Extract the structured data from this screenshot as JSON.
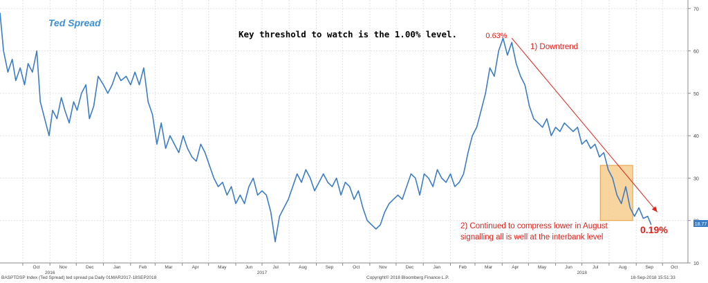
{
  "chart_data": {
    "type": "line",
    "title": "Ted Spread",
    "subtitle": "Key threshold to watch is the 1.00% level.",
    "xlabel": "",
    "ylabel": "",
    "x_range": [
      "2016-09-05",
      "2018-10-30"
    ],
    "ylim": [
      10,
      72
    ],
    "yticks": [
      10,
      20,
      30,
      40,
      50,
      60,
      70
    ],
    "ytick_labels": [
      "10",
      "20",
      "30",
      "40",
      "50",
      "60",
      "70"
    ],
    "grid": true,
    "y_axis_side": "right",
    "month_labels": [
      {
        "label": "Oct",
        "date": "2016-10-01"
      },
      {
        "label": "Nov",
        "date": "2016-11-01"
      },
      {
        "label": "Dec",
        "date": "2016-12-01"
      },
      {
        "label": "Jan",
        "date": "2017-01-01"
      },
      {
        "label": "Feb",
        "date": "2017-02-01"
      },
      {
        "label": "Mar",
        "date": "2017-03-01"
      },
      {
        "label": "Apr",
        "date": "2017-04-01"
      },
      {
        "label": "May",
        "date": "2017-05-01"
      },
      {
        "label": "Jun",
        "date": "2017-06-01"
      },
      {
        "label": "Jul",
        "date": "2017-07-01"
      },
      {
        "label": "Aug",
        "date": "2017-08-01"
      },
      {
        "label": "Sep",
        "date": "2017-09-01"
      },
      {
        "label": "Oct",
        "date": "2017-10-01"
      },
      {
        "label": "Nov",
        "date": "2017-11-01"
      },
      {
        "label": "Dec",
        "date": "2017-12-01"
      },
      {
        "label": "Jan",
        "date": "2018-01-01"
      },
      {
        "label": "Feb",
        "date": "2018-02-01"
      },
      {
        "label": "Mar",
        "date": "2018-03-01"
      },
      {
        "label": "Apr",
        "date": "2018-04-01"
      },
      {
        "label": "May",
        "date": "2018-05-01"
      },
      {
        "label": "Jun",
        "date": "2018-06-01"
      },
      {
        "label": "Jul",
        "date": "2018-07-01"
      },
      {
        "label": "Aug",
        "date": "2018-08-01"
      },
      {
        "label": "Sep",
        "date": "2018-09-01"
      },
      {
        "label": "Oct",
        "date": "2018-10-01"
      }
    ],
    "year_labels": [
      {
        "label": "2016",
        "date": "2016-11-01"
      },
      {
        "label": "2017",
        "date": "2017-07-01"
      },
      {
        "label": "2018",
        "date": "2018-07-01"
      }
    ],
    "series": [
      {
        "name": "",
        "color": "#3a7cc6",
        "points": [
          [
            "2016-09-05",
            69
          ],
          [
            "2016-09-09",
            60
          ],
          [
            "2016-09-14",
            55
          ],
          [
            "2016-09-19",
            58
          ],
          [
            "2016-09-23",
            53
          ],
          [
            "2016-09-28",
            56
          ],
          [
            "2016-10-03",
            52
          ],
          [
            "2016-10-07",
            57
          ],
          [
            "2016-10-12",
            55
          ],
          [
            "2016-10-17",
            60
          ],
          [
            "2016-10-21",
            48
          ],
          [
            "2016-10-26",
            44
          ],
          [
            "2016-10-31",
            40
          ],
          [
            "2016-11-04",
            46
          ],
          [
            "2016-11-09",
            44
          ],
          [
            "2016-11-14",
            49
          ],
          [
            "2016-11-18",
            46
          ],
          [
            "2016-11-23",
            43
          ],
          [
            "2016-11-28",
            48
          ],
          [
            "2016-12-02",
            46
          ],
          [
            "2016-12-07",
            50
          ],
          [
            "2016-12-12",
            52
          ],
          [
            "2016-12-16",
            44
          ],
          [
            "2016-12-21",
            47
          ],
          [
            "2016-12-26",
            54
          ],
          [
            "2017-01-01",
            52
          ],
          [
            "2017-01-06",
            50
          ],
          [
            "2017-01-11",
            52
          ],
          [
            "2017-01-16",
            55
          ],
          [
            "2017-01-21",
            53
          ],
          [
            "2017-01-27",
            54
          ],
          [
            "2017-02-01",
            52
          ],
          [
            "2017-02-06",
            55
          ],
          [
            "2017-02-11",
            52
          ],
          [
            "2017-02-16",
            56
          ],
          [
            "2017-02-21",
            48
          ],
          [
            "2017-02-26",
            45
          ],
          [
            "2017-03-03",
            38
          ],
          [
            "2017-03-08",
            43
          ],
          [
            "2017-03-13",
            37
          ],
          [
            "2017-03-18",
            40
          ],
          [
            "2017-03-23",
            38
          ],
          [
            "2017-03-28",
            36
          ],
          [
            "2017-04-02",
            40
          ],
          [
            "2017-04-07",
            37
          ],
          [
            "2017-04-12",
            35
          ],
          [
            "2017-04-17",
            34
          ],
          [
            "2017-04-22",
            38
          ],
          [
            "2017-04-27",
            36
          ],
          [
            "2017-05-02",
            33
          ],
          [
            "2017-05-07",
            30
          ],
          [
            "2017-05-12",
            28
          ],
          [
            "2017-05-17",
            29
          ],
          [
            "2017-05-22",
            26
          ],
          [
            "2017-05-27",
            28
          ],
          [
            "2017-06-01",
            24
          ],
          [
            "2017-06-06",
            26
          ],
          [
            "2017-06-11",
            24
          ],
          [
            "2017-06-16",
            28
          ],
          [
            "2017-06-21",
            30
          ],
          [
            "2017-06-26",
            26
          ],
          [
            "2017-07-01",
            27
          ],
          [
            "2017-07-06",
            26
          ],
          [
            "2017-07-11",
            22
          ],
          [
            "2017-07-16",
            15
          ],
          [
            "2017-07-21",
            21
          ],
          [
            "2017-07-26",
            23
          ],
          [
            "2017-07-31",
            25
          ],
          [
            "2017-08-05",
            28
          ],
          [
            "2017-08-10",
            31
          ],
          [
            "2017-08-15",
            29
          ],
          [
            "2017-08-20",
            32
          ],
          [
            "2017-08-25",
            30
          ],
          [
            "2017-08-30",
            27
          ],
          [
            "2017-09-04",
            29
          ],
          [
            "2017-09-09",
            31
          ],
          [
            "2017-09-14",
            29
          ],
          [
            "2017-09-19",
            28
          ],
          [
            "2017-09-24",
            30
          ],
          [
            "2017-09-29",
            26
          ],
          [
            "2017-10-04",
            29
          ],
          [
            "2017-10-09",
            28
          ],
          [
            "2017-10-14",
            25
          ],
          [
            "2017-10-19",
            27
          ],
          [
            "2017-10-24",
            23
          ],
          [
            "2017-10-29",
            20
          ],
          [
            "2017-11-03",
            19
          ],
          [
            "2017-11-08",
            18
          ],
          [
            "2017-11-13",
            19
          ],
          [
            "2017-11-18",
            22
          ],
          [
            "2017-11-23",
            24
          ],
          [
            "2017-11-28",
            25
          ],
          [
            "2017-12-03",
            26
          ],
          [
            "2017-12-08",
            25
          ],
          [
            "2017-12-13",
            28
          ],
          [
            "2017-12-18",
            31
          ],
          [
            "2017-12-23",
            30
          ],
          [
            "2017-12-28",
            26
          ],
          [
            "2018-01-02",
            31
          ],
          [
            "2018-01-07",
            30
          ],
          [
            "2018-01-12",
            28
          ],
          [
            "2018-01-17",
            32
          ],
          [
            "2018-01-22",
            30
          ],
          [
            "2018-01-27",
            29
          ],
          [
            "2018-02-01",
            31
          ],
          [
            "2018-02-06",
            28
          ],
          [
            "2018-02-11",
            29
          ],
          [
            "2018-02-16",
            31
          ],
          [
            "2018-02-21",
            36
          ],
          [
            "2018-02-26",
            40
          ],
          [
            "2018-03-03",
            42
          ],
          [
            "2018-03-08",
            46
          ],
          [
            "2018-03-13",
            50
          ],
          [
            "2018-03-18",
            56
          ],
          [
            "2018-03-23",
            54
          ],
          [
            "2018-03-28",
            60
          ],
          [
            "2018-04-02",
            63
          ],
          [
            "2018-04-07",
            59
          ],
          [
            "2018-04-12",
            62
          ],
          [
            "2018-04-17",
            57
          ],
          [
            "2018-04-22",
            54
          ],
          [
            "2018-04-27",
            52
          ],
          [
            "2018-05-02",
            47
          ],
          [
            "2018-05-07",
            44
          ],
          [
            "2018-05-12",
            43
          ],
          [
            "2018-05-17",
            42
          ],
          [
            "2018-05-22",
            44
          ],
          [
            "2018-05-27",
            40
          ],
          [
            "2018-06-01",
            42
          ],
          [
            "2018-06-06",
            41
          ],
          [
            "2018-06-11",
            43
          ],
          [
            "2018-06-16",
            42
          ],
          [
            "2018-06-21",
            41
          ],
          [
            "2018-06-26",
            42
          ],
          [
            "2018-07-01",
            38
          ],
          [
            "2018-07-06",
            39
          ],
          [
            "2018-07-11",
            37
          ],
          [
            "2018-07-16",
            38
          ],
          [
            "2018-07-21",
            35
          ],
          [
            "2018-07-26",
            36
          ],
          [
            "2018-07-31",
            32
          ],
          [
            "2018-08-05",
            30
          ],
          [
            "2018-08-10",
            26
          ],
          [
            "2018-08-15",
            24
          ],
          [
            "2018-08-20",
            28
          ],
          [
            "2018-08-25",
            23
          ],
          [
            "2018-08-30",
            21
          ],
          [
            "2018-09-04",
            23
          ],
          [
            "2018-09-09",
            20.5
          ],
          [
            "2018-09-14",
            21
          ],
          [
            "2018-09-18",
            19
          ]
        ]
      }
    ],
    "last_value_label": "18.77",
    "annotations": [
      {
        "text": "0.63%",
        "color": "#e0201b"
      },
      {
        "text": "1) Downtrend",
        "color": "#e0201b"
      },
      {
        "line1": "2) Continued to compress lower in August",
        "line2": "signalling all is well at the interbank level",
        "color": "#e0201b"
      },
      {
        "text": "0.19%",
        "color": "#e0201b"
      }
    ],
    "highlight": {
      "x_range": [
        "2018-07-22",
        "2018-08-28"
      ],
      "y_range": [
        20,
        33
      ],
      "fill": "#f5c57e",
      "stroke": "#e59b3a"
    },
    "trend_arrow": {
      "from": [
        "2018-04-12",
        63
      ],
      "to": [
        "2018-09-25",
        22
      ],
      "color": "#e0201b"
    }
  },
  "footer": {
    "left": "BASPTDSP Index (Ted Spread) ted spread pa  Daily 01MAR2017-18SEP2018",
    "center": "Copyright© 2018 Bloomberg Finance L.P.",
    "right": "18-Sep-2018 15:51:33"
  }
}
